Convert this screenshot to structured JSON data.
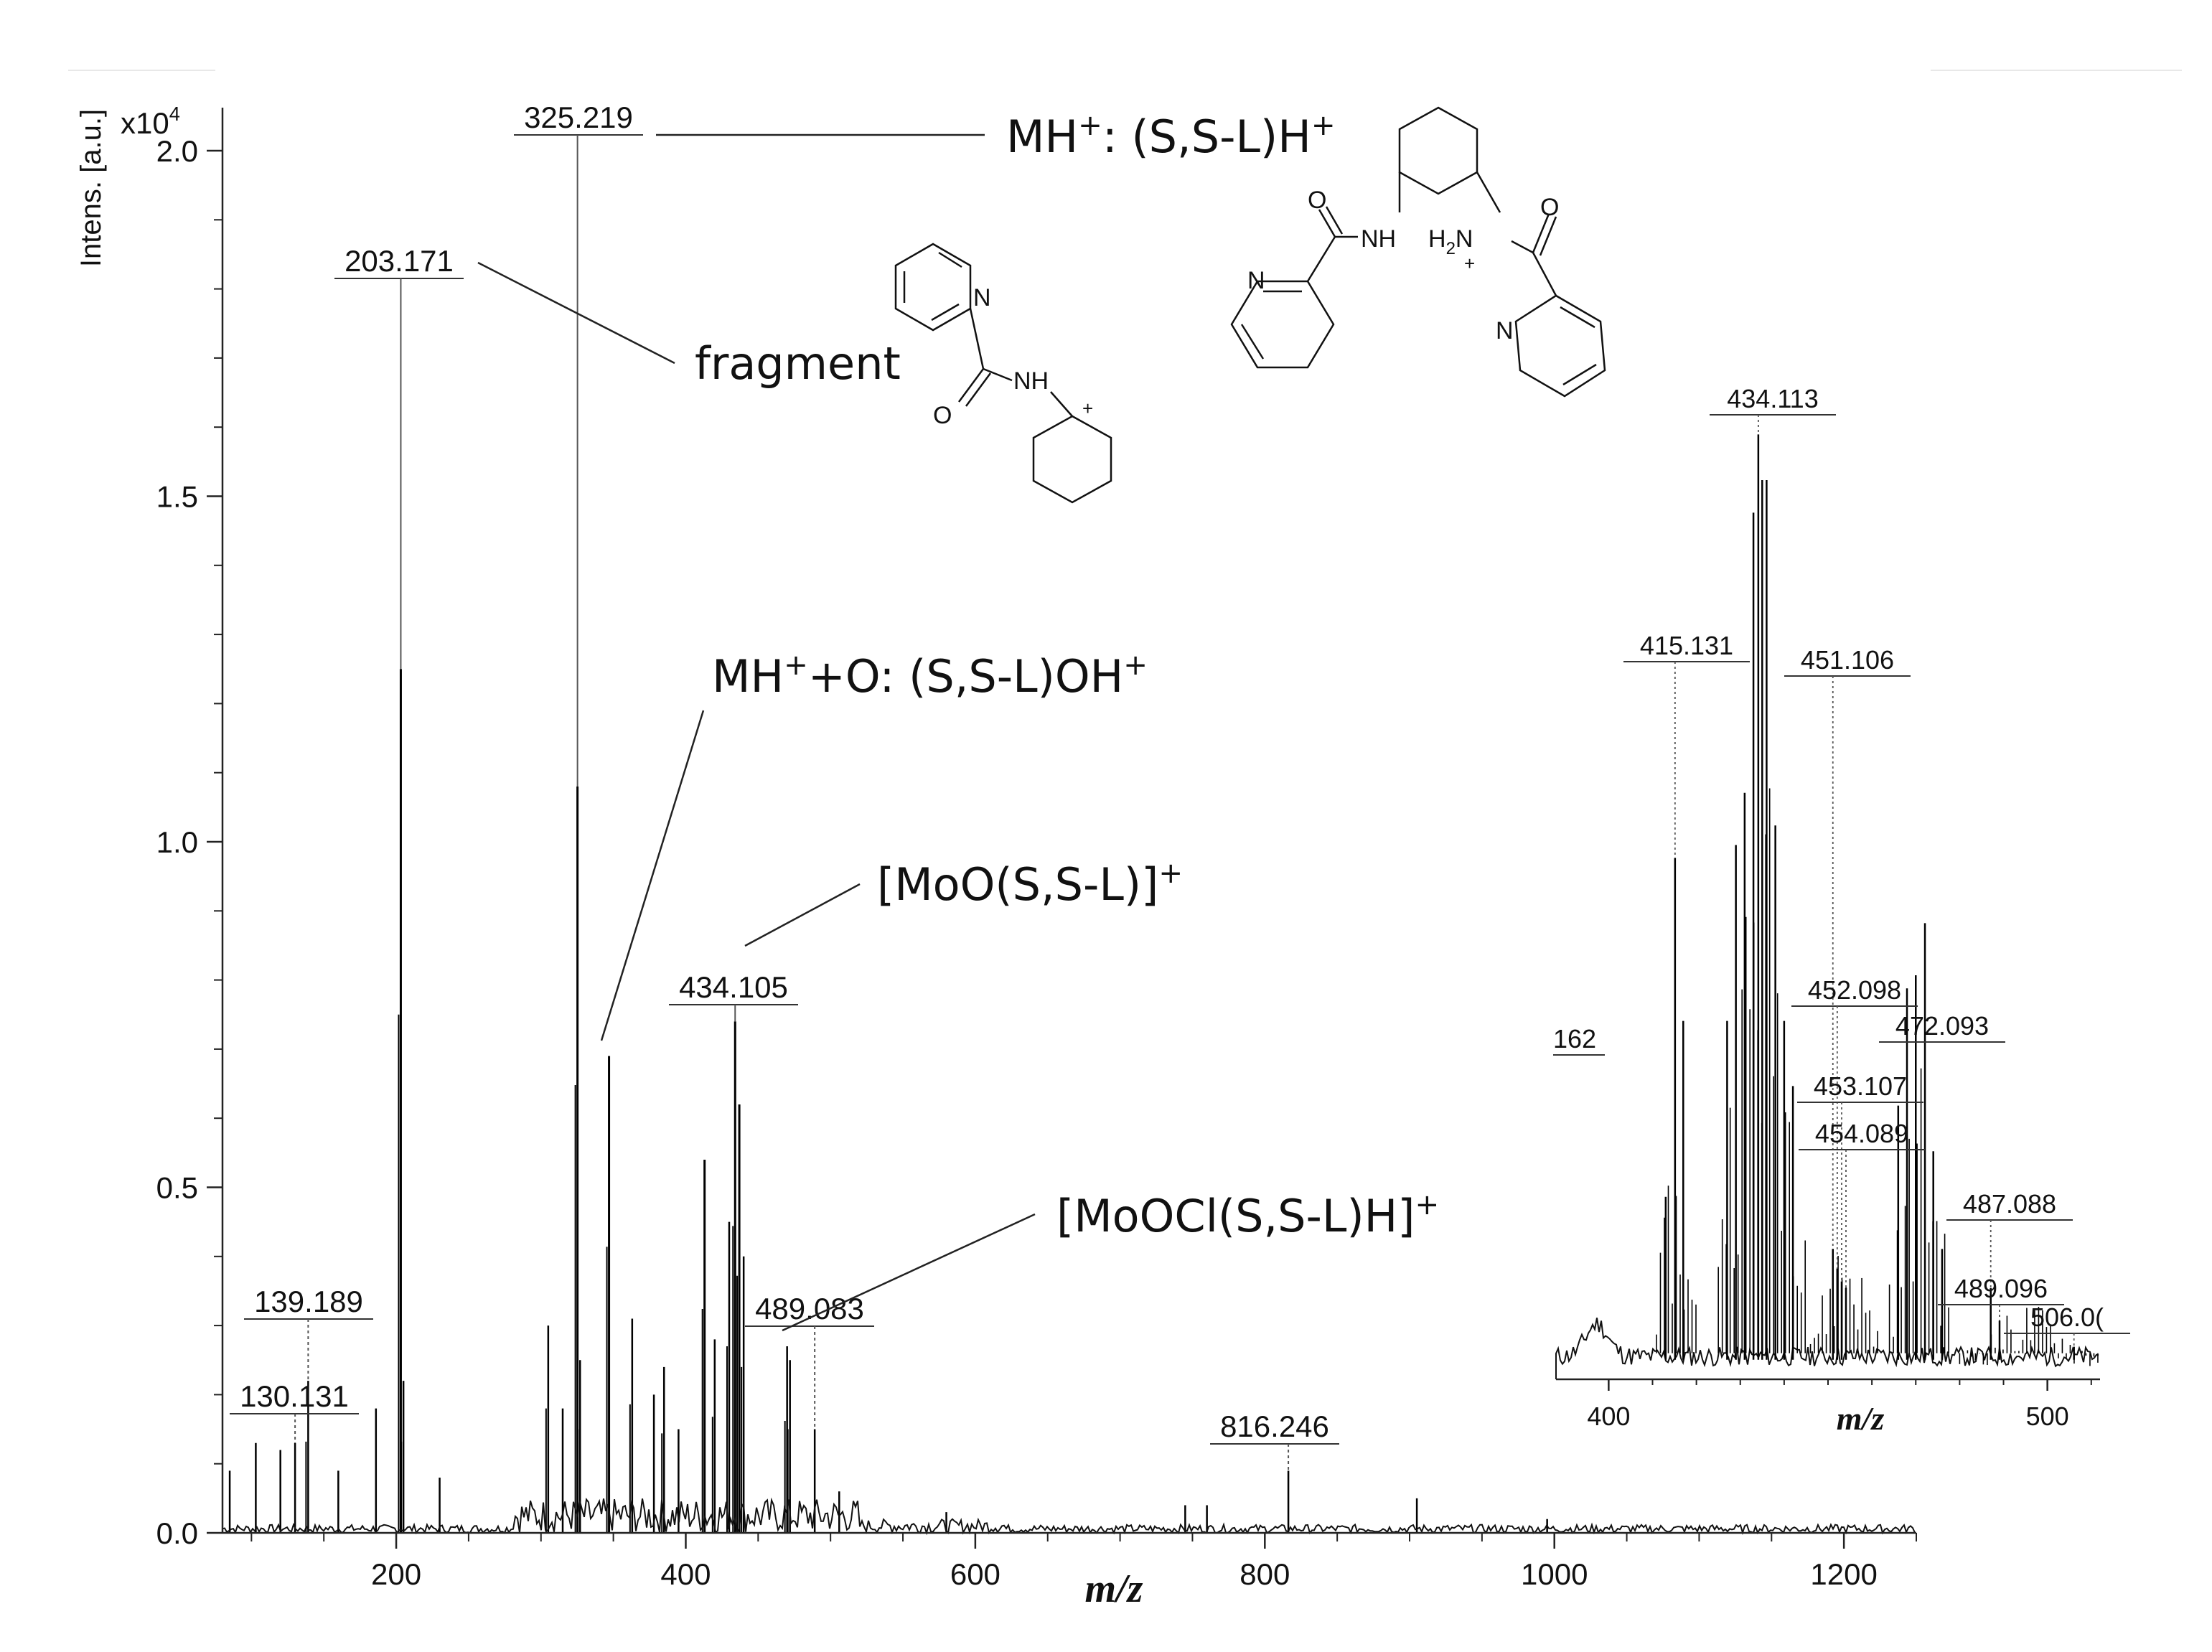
{
  "chart_data": {
    "type": "line",
    "main": {
      "xlabel": "m/z",
      "ylabel": "Intens. [a.u.]",
      "y_multiplier": "x10",
      "y_multiplier_exp": "4",
      "xlim": [
        80,
        1250
      ],
      "ylim": [
        0,
        2.0
      ],
      "x_ticks": [
        200,
        400,
        600,
        800,
        1000,
        1200
      ],
      "y_ticks": [
        "0.0",
        "0.5",
        "1.0",
        "1.5",
        "2.0"
      ],
      "y_tick_values": [
        0,
        0.5,
        1.0,
        1.5,
        2.0
      ],
      "peaks": [
        {
          "x": 85,
          "y": 0.09
        },
        {
          "x": 103,
          "y": 0.13
        },
        {
          "x": 120,
          "y": 0.12
        },
        {
          "x": 130.131,
          "y": 0.13,
          "label": "130.131"
        },
        {
          "x": 139.189,
          "y": 0.22,
          "label": "139.189"
        },
        {
          "x": 160,
          "y": 0.09
        },
        {
          "x": 186,
          "y": 0.18
        },
        {
          "x": 203.171,
          "y": 1.25,
          "label": "203.171"
        },
        {
          "x": 205,
          "y": 0.22
        },
        {
          "x": 230,
          "y": 0.08
        },
        {
          "x": 305,
          "y": 0.3
        },
        {
          "x": 315,
          "y": 0.18
        },
        {
          "x": 325.219,
          "y": 1.08,
          "label": "325.219"
        },
        {
          "x": 327,
          "y": 0.25
        },
        {
          "x": 347,
          "y": 0.69
        },
        {
          "x": 363,
          "y": 0.31
        },
        {
          "x": 378,
          "y": 0.2
        },
        {
          "x": 385,
          "y": 0.24
        },
        {
          "x": 395,
          "y": 0.15
        },
        {
          "x": 413,
          "y": 0.54
        },
        {
          "x": 420,
          "y": 0.28
        },
        {
          "x": 430,
          "y": 0.45
        },
        {
          "x": 434.105,
          "y": 0.74,
          "label": "434.105"
        },
        {
          "x": 437,
          "y": 0.62
        },
        {
          "x": 440,
          "y": 0.4
        },
        {
          "x": 470,
          "y": 0.27
        },
        {
          "x": 472,
          "y": 0.25
        },
        {
          "x": 489.083,
          "y": 0.15,
          "label": "489.083"
        },
        {
          "x": 506,
          "y": 0.06
        },
        {
          "x": 580,
          "y": 0.03
        },
        {
          "x": 745,
          "y": 0.04
        },
        {
          "x": 760,
          "y": 0.04
        },
        {
          "x": 816.246,
          "y": 0.09,
          "label": "816.246"
        },
        {
          "x": 905,
          "y": 0.05
        },
        {
          "x": 995,
          "y": 0.02
        }
      ]
    },
    "inset": {
      "xlabel": "m/z",
      "xlim": [
        388,
        512
      ],
      "x_ticks": [
        400,
        500
      ],
      "ylim": [
        0,
        1.5
      ],
      "cut_label": "162",
      "peaks": [
        {
          "x": 415.131,
          "y": 0.8,
          "label": "415.131"
        },
        {
          "x": 413,
          "y": 0.28
        },
        {
          "x": 417,
          "y": 0.55
        },
        {
          "x": 427,
          "y": 0.55
        },
        {
          "x": 429,
          "y": 0.82
        },
        {
          "x": 431,
          "y": 0.9
        },
        {
          "x": 433,
          "y": 1.33
        },
        {
          "x": 434.113,
          "y": 1.45,
          "label": "434.113"
        },
        {
          "x": 435,
          "y": 1.38
        },
        {
          "x": 436,
          "y": 1.38
        },
        {
          "x": 438,
          "y": 0.85
        },
        {
          "x": 440,
          "y": 0.55
        },
        {
          "x": 442,
          "y": 0.45
        },
        {
          "x": 451.106,
          "y": 0.2,
          "label": "451.106"
        },
        {
          "x": 452.098,
          "y": 0.17,
          "label": "452.098"
        },
        {
          "x": 453.107,
          "y": 0.15,
          "label": "453.107"
        },
        {
          "x": 454.089,
          "y": 0.14,
          "label": "454.089"
        },
        {
          "x": 466,
          "y": 0.42
        },
        {
          "x": 468,
          "y": 0.6
        },
        {
          "x": 470,
          "y": 0.62
        },
        {
          "x": 472.093,
          "y": 0.7,
          "label": "472.093"
        },
        {
          "x": 474,
          "y": 0.35
        },
        {
          "x": 476,
          "y": 0.2
        },
        {
          "x": 487.088,
          "y": 0.14,
          "label": "487.088"
        },
        {
          "x": 489.096,
          "y": 0.09,
          "label": "489.096"
        },
        {
          "x": 506.06,
          "y": 0.05,
          "label": "506.0("
        }
      ]
    }
  },
  "annotations": {
    "mh": {
      "main": "MH",
      "sup": "+",
      "rest": ": (S,S-L)H",
      "sup2": "+"
    },
    "fragment": "fragment",
    "mho": {
      "main": "MH",
      "sup": "+",
      "rest": "+O: (S,S-L)OH",
      "sup2": "+"
    },
    "moo": {
      "main": "[MoO(S,S-L)]",
      "sup": "+"
    },
    "moocl": {
      "main": "[MoOCl(S,S-L)H]",
      "sup": "+"
    }
  },
  "structures": {
    "nh": "NH",
    "n": "N",
    "o": "O",
    "h2n": "H",
    "h2n_sub": "2",
    "h2n_n": "N",
    "plus": "+"
  }
}
